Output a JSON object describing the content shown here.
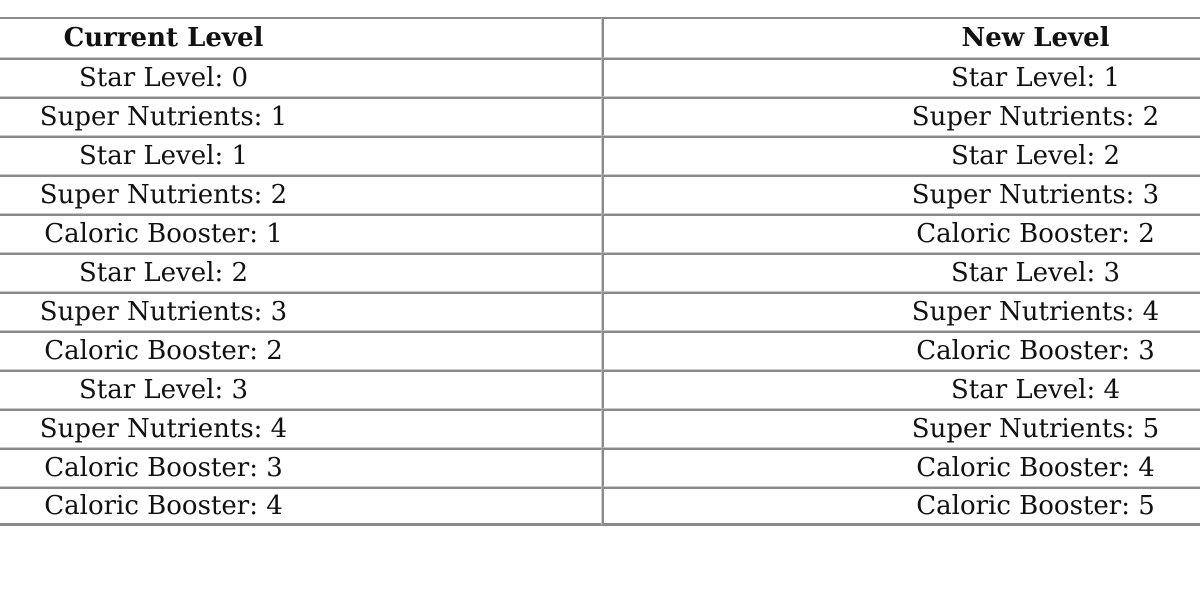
{
  "table": {
    "headers": [
      "Current Level",
      "New Level"
    ],
    "rows": [
      [
        "Star Level: 0",
        "Star Level: 1"
      ],
      [
        "Super Nutrients: 1",
        "Super Nutrients: 2"
      ],
      [
        "Star Level: 1",
        "Star Level: 2"
      ],
      [
        "Super Nutrients: 2",
        "Super Nutrients: 3"
      ],
      [
        "Caloric Booster: 1",
        "Caloric Booster: 2"
      ],
      [
        "Star Level: 2",
        "Star Level: 3"
      ],
      [
        "Super Nutrients: 3",
        "Super Nutrients: 4"
      ],
      [
        "Caloric Booster: 2",
        "Caloric Booster: 3"
      ],
      [
        "Star Level: 3",
        "Star Level: 4"
      ],
      [
        "Super Nutrients: 4",
        "Super Nutrients: 5"
      ],
      [
        "Caloric Booster: 3",
        "Caloric Booster: 4"
      ],
      [
        "Caloric Booster: 4",
        "Caloric Booster: 5"
      ]
    ]
  }
}
